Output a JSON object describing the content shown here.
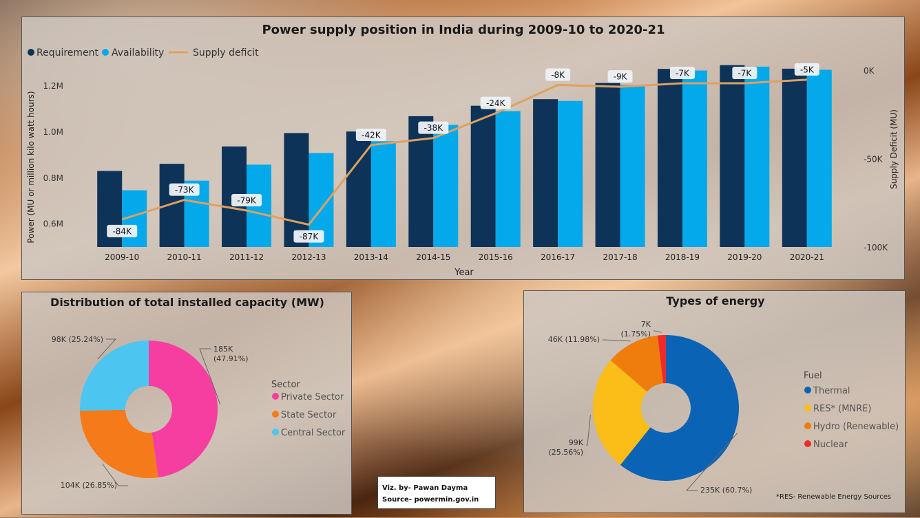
{
  "credit": {
    "viz": "Viz. by- Pawan Dayma",
    "source": "Source- powermin.gov.in"
  },
  "chart_data": [
    {
      "type": "bar",
      "title": "Power supply position in India during 2009-10 to 2020-21",
      "xlabel": "Year",
      "ylabel": "Power (MU or million kilo watt hours)",
      "y2label": "Supply Deficit (MU)",
      "categories": [
        "2009-10",
        "2010-11",
        "2011-12",
        "2012-13",
        "2013-14",
        "2014-15",
        "2015-16",
        "2016-17",
        "2017-18",
        "2018-19",
        "2019-20",
        "2020-21"
      ],
      "series": [
        {
          "name": "Requirement",
          "type": "bar",
          "color": "#0d3358",
          "values": [
            830594,
            861591,
            937199,
            995557,
            1002257,
            1068923,
            1114408,
            1142929,
            1213326,
            1274595,
            1291010,
            1275534
          ]
        },
        {
          "name": "Availability",
          "type": "bar",
          "color": "#03a9ea",
          "values": [
            746644,
            788355,
            857886,
            908652,
            959829,
            1030785,
            1090850,
            1135334,
            1204697,
            1267526,
            1284444,
            1270663
          ]
        },
        {
          "name": "Supply deficit",
          "type": "line",
          "axis": "right",
          "color": "#e0a060",
          "values": [
            -84,
            -73,
            -79,
            -87,
            -42,
            -38,
            -24,
            -8,
            -9,
            -7,
            -7,
            -5
          ]
        }
      ],
      "data_labels": [
        "-84K",
        "-73K",
        "-79K",
        "-87K",
        "-42K",
        "-38K",
        "-24K",
        "-8K",
        "-9K",
        "-7K",
        "-7K",
        "-5K"
      ],
      "y_ticks": [
        "0.6M",
        "0.8M",
        "1.0M",
        "1.2M"
      ],
      "y_tick_values": [
        600000,
        800000,
        1000000,
        1200000
      ],
      "ylim": [
        500000,
        1320000
      ],
      "y2_ticks": [
        "0K",
        "-50K",
        "-100K"
      ],
      "y2_tick_values": [
        0,
        -50,
        -100
      ],
      "y2lim": [
        -100,
        0
      ],
      "legend": "top-left"
    },
    {
      "type": "pie",
      "title": "Distribution of total installed capacity (MW)",
      "legend_title": "Sector",
      "slices": [
        {
          "name": "Private Sector",
          "value": 185,
          "label": "185K",
          "pct": "(47.91%)",
          "color": "#f53ea0"
        },
        {
          "name": "State Sector",
          "value": 104,
          "label": "104K (26.85%)",
          "pct": "",
          "color": "#f57a1a"
        },
        {
          "name": "Central Sector",
          "value": 98,
          "label": "98K (25.24%)",
          "pct": "",
          "color": "#4cc5f0"
        }
      ]
    },
    {
      "type": "pie",
      "title": "Types of energy",
      "legend_title": "Fuel",
      "footnote": "*RES- Renewable Energy Sources",
      "slices": [
        {
          "name": "Thermal",
          "value": 235,
          "label": "235K (60.7%)",
          "pct": "",
          "color": "#0b63b5"
        },
        {
          "name": "RES* (MNRE)",
          "value": 99,
          "label": "99K",
          "pct": "(25.56%)",
          "color": "#fbbd17"
        },
        {
          "name": "Hydro (Renewable)",
          "value": 46,
          "label": "46K (11.98%)",
          "pct": "",
          "color": "#ee7d0e"
        },
        {
          "name": "Nuclear",
          "value": 7,
          "label": "7K",
          "pct": "(1.75%)",
          "color": "#ee2b2b"
        }
      ]
    }
  ]
}
